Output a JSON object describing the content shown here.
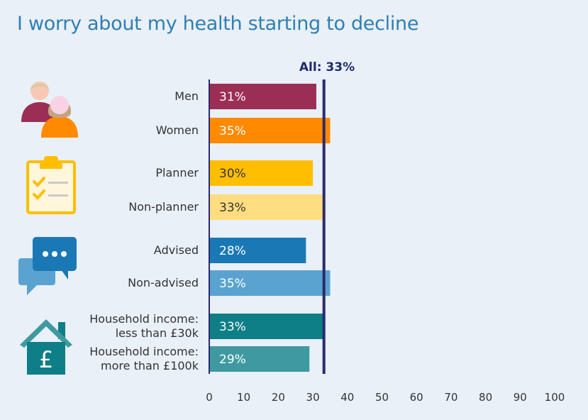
{
  "title": "I worry about my health starting to decline",
  "chart_data": {
    "type": "bar",
    "orientation": "horizontal",
    "title": "I worry about my health starting to decline",
    "categories": [
      [
        "Men"
      ],
      [
        "Women"
      ],
      [
        "Planner"
      ],
      [
        "Non-planner"
      ],
      [
        "Advised"
      ],
      [
        "Non-advised"
      ],
      [
        "Household income:",
        "less than £30k"
      ],
      [
        "Household income:",
        "more than £100k"
      ]
    ],
    "values": [
      31,
      35,
      30,
      33,
      28,
      35,
      33,
      29
    ],
    "value_labels": [
      "31%",
      "35%",
      "30%",
      "33%",
      "28%",
      "35%",
      "33%",
      "29%"
    ],
    "colors": [
      "#9b2e55",
      "#ff8a00",
      "#ffbe00",
      "#ffdd80",
      "#1a79b5",
      "#5aa3d0",
      "#0e7e87",
      "#3e9aa0"
    ],
    "value_label_colors": [
      "#ffffff",
      "#ffffff",
      "#333333",
      "#333333",
      "#ffffff",
      "#ffffff",
      "#ffffff",
      "#ffffff"
    ],
    "reference_line": {
      "value": 33,
      "label": "All: 33%",
      "color": "#2b2a6e"
    },
    "xlim": [
      0,
      100
    ],
    "xticks": [
      0,
      10,
      20,
      30,
      40,
      50,
      60,
      70,
      80,
      90,
      100
    ],
    "xlabel": "",
    "ylabel": "",
    "grid": false,
    "legend": "none"
  },
  "icons": [
    "people-icon",
    "clipboard-checklist-icon",
    "chat-bubbles-icon",
    "house-pound-icon"
  ]
}
